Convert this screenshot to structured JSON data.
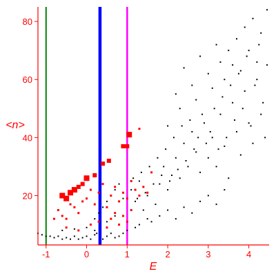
{
  "chart_data": {
    "type": "scatter",
    "xlabel": "E",
    "ylabel": "<n>",
    "xlim": [
      -1.2,
      4.5
    ],
    "ylim": [
      3,
      85
    ],
    "x_ticks": [
      "-1",
      "0",
      "1",
      "2",
      "3",
      "4"
    ],
    "y_ticks": [
      "20",
      "40",
      "60",
      "80"
    ],
    "vertical_lines": [
      {
        "x": -1.0,
        "color": "#008000",
        "weight": "thin"
      },
      {
        "x": 0.33,
        "color": "#0000ff",
        "weight": "thick"
      },
      {
        "x": 1.0,
        "color": "#ff00ff",
        "weight": "medium"
      }
    ],
    "series": [
      {
        "marker": "black-dot",
        "color": "#000000",
        "points": [
          [
            -1.2,
            7
          ],
          [
            -1.1,
            6.5
          ],
          [
            -1.0,
            6
          ],
          [
            -0.9,
            6
          ],
          [
            -0.8,
            5.5
          ],
          [
            -0.7,
            6
          ],
          [
            -0.6,
            5
          ],
          [
            -0.5,
            5.5
          ],
          [
            -0.4,
            5
          ],
          [
            -0.3,
            6
          ],
          [
            -0.2,
            5
          ],
          [
            -0.1,
            5.5
          ],
          [
            0.0,
            6
          ],
          [
            0.1,
            5
          ],
          [
            0.2,
            6.5
          ],
          [
            0.25,
            7
          ],
          [
            -0.6,
            8
          ],
          [
            -0.3,
            8.5
          ],
          [
            0.0,
            9
          ],
          [
            0.2,
            8
          ],
          [
            0.4,
            5
          ],
          [
            0.5,
            6
          ],
          [
            0.6,
            7
          ],
          [
            0.7,
            5.5
          ],
          [
            0.8,
            6
          ],
          [
            0.9,
            7
          ],
          [
            1.0,
            8
          ],
          [
            1.2,
            9
          ],
          [
            1.3,
            10
          ],
          [
            1.5,
            12
          ],
          [
            0.2,
            12
          ],
          [
            0.3,
            14
          ],
          [
            0.4,
            16
          ],
          [
            0.5,
            18
          ],
          [
            0.6,
            20
          ],
          [
            0.7,
            22
          ],
          [
            0.8,
            24
          ],
          [
            0.9,
            19
          ],
          [
            0.5,
            11
          ],
          [
            0.7,
            13
          ],
          [
            1.1,
            22
          ],
          [
            1.2,
            18
          ],
          [
            1.3,
            25
          ],
          [
            1.4,
            15
          ],
          [
            1.5,
            20
          ],
          [
            1.6,
            28
          ],
          [
            1.7,
            17
          ],
          [
            1.8,
            24
          ],
          [
            1.9,
            30
          ],
          [
            2.0,
            22
          ],
          [
            1.6,
            11
          ],
          [
            1.8,
            13
          ],
          [
            2.0,
            15
          ],
          [
            2.2,
            12
          ],
          [
            2.4,
            16
          ],
          [
            2.6,
            14
          ],
          [
            2.8,
            18
          ],
          [
            3.0,
            20
          ],
          [
            3.2,
            17
          ],
          [
            3.4,
            22
          ],
          [
            2.1,
            27
          ],
          [
            2.2,
            33
          ],
          [
            2.3,
            26
          ],
          [
            2.4,
            38
          ],
          [
            2.5,
            30
          ],
          [
            2.6,
            42
          ],
          [
            2.7,
            35
          ],
          [
            2.8,
            28
          ],
          [
            2.9,
            45
          ],
          [
            3.0,
            33
          ],
          [
            3.1,
            40
          ],
          [
            3.2,
            30
          ],
          [
            3.3,
            48
          ],
          [
            3.4,
            37
          ],
          [
            3.5,
            26
          ],
          [
            3.6,
            52
          ],
          [
            3.7,
            42
          ],
          [
            3.8,
            34
          ],
          [
            3.9,
            56
          ],
          [
            4.0,
            45
          ],
          [
            4.1,
            38
          ],
          [
            4.2,
            60
          ],
          [
            4.3,
            48
          ],
          [
            4.4,
            40
          ],
          [
            4.45,
            65
          ],
          [
            4.35,
            52
          ],
          [
            4.25,
            72
          ],
          [
            4.15,
            58
          ],
          [
            4.05,
            44
          ],
          [
            3.95,
            68
          ],
          [
            3.85,
            50
          ],
          [
            3.75,
            62
          ],
          [
            3.65,
            46
          ],
          [
            3.55,
            58
          ],
          [
            3.45,
            40
          ],
          [
            3.35,
            54
          ],
          [
            3.25,
            36
          ],
          [
            3.15,
            50
          ],
          [
            3.05,
            42
          ],
          [
            2.95,
            38
          ],
          [
            2.85,
            48
          ],
          [
            2.75,
            40
          ],
          [
            2.65,
            36
          ],
          [
            2.55,
            46
          ],
          [
            2.45,
            32
          ],
          [
            2.35,
            44
          ],
          [
            2.25,
            29
          ],
          [
            2.15,
            40
          ],
          [
            2.05,
            25
          ],
          [
            1.95,
            36
          ],
          [
            1.85,
            27
          ],
          [
            1.75,
            33
          ],
          [
            1.65,
            24
          ],
          [
            1.55,
            30
          ],
          [
            1.45,
            21
          ],
          [
            1.35,
            28
          ],
          [
            1.25,
            19
          ],
          [
            1.15,
            26
          ],
          [
            2.2,
            55
          ],
          [
            2.6,
            58
          ],
          [
            3.0,
            62
          ],
          [
            3.3,
            66
          ],
          [
            3.5,
            70
          ],
          [
            3.7,
            74
          ],
          [
            3.9,
            78
          ],
          [
            4.1,
            81
          ],
          [
            4.3,
            76
          ],
          [
            4.45,
            84
          ],
          [
            2.4,
            64
          ],
          [
            2.8,
            68
          ],
          [
            3.2,
            72
          ],
          [
            3.6,
            65
          ],
          [
            4.0,
            70
          ],
          [
            4.2,
            66
          ],
          [
            2.0,
            44
          ],
          [
            2.3,
            50
          ],
          [
            2.7,
            53
          ],
          [
            3.1,
            57
          ],
          [
            3.4,
            60
          ],
          [
            3.8,
            63
          ]
        ]
      },
      {
        "marker": "red-square",
        "color": "#ff0000",
        "points": [
          [
            -0.6,
            20
          ],
          [
            -0.5,
            19
          ],
          [
            -0.4,
            21
          ],
          [
            -0.3,
            22
          ],
          [
            -0.2,
            23
          ],
          [
            -0.1,
            24
          ],
          [
            0.0,
            26
          ],
          [
            0.2,
            27
          ],
          [
            0.4,
            31
          ],
          [
            0.55,
            32
          ],
          [
            0.9,
            37
          ],
          [
            1.0,
            37
          ],
          [
            1.05,
            41
          ],
          [
            1.3,
            43
          ],
          [
            -0.7,
            15
          ],
          [
            -0.6,
            13
          ],
          [
            -0.5,
            12
          ],
          [
            -0.4,
            17
          ],
          [
            -0.3,
            16
          ],
          [
            -0.2,
            14
          ],
          [
            -0.1,
            18
          ],
          [
            0.0,
            19
          ],
          [
            0.1,
            22
          ],
          [
            0.2,
            17
          ],
          [
            0.3,
            21
          ],
          [
            0.4,
            24
          ],
          [
            0.5,
            16
          ],
          [
            0.6,
            20
          ],
          [
            0.7,
            23
          ],
          [
            0.8,
            18
          ],
          [
            0.9,
            21
          ],
          [
            1.0,
            19
          ],
          [
            1.1,
            25
          ],
          [
            1.2,
            22
          ],
          [
            1.3,
            20
          ],
          [
            1.4,
            23
          ],
          [
            1.5,
            21
          ],
          [
            1.6,
            28
          ],
          [
            0.6,
            12
          ],
          [
            0.7,
            14
          ],
          [
            0.8,
            10
          ],
          [
            0.9,
            13
          ],
          [
            1.0,
            11
          ],
          [
            -0.8,
            12
          ],
          [
            -0.5,
            9
          ],
          [
            -0.2,
            8
          ],
          [
            0.1,
            10
          ],
          [
            0.3,
            11
          ],
          [
            0.5,
            9
          ],
          [
            1.1,
            15
          ]
        ],
        "sizes": [
          3,
          3,
          3,
          3,
          2,
          2,
          3,
          2,
          2,
          2,
          2,
          2,
          3,
          1,
          1,
          1,
          1,
          1,
          1,
          1,
          1,
          1,
          1,
          1,
          1,
          1,
          1,
          1,
          1,
          1,
          1,
          1,
          1,
          1,
          1,
          1,
          1,
          1,
          1,
          1,
          1,
          1,
          1,
          1,
          1,
          1,
          1,
          1,
          1,
          1
        ]
      }
    ]
  }
}
